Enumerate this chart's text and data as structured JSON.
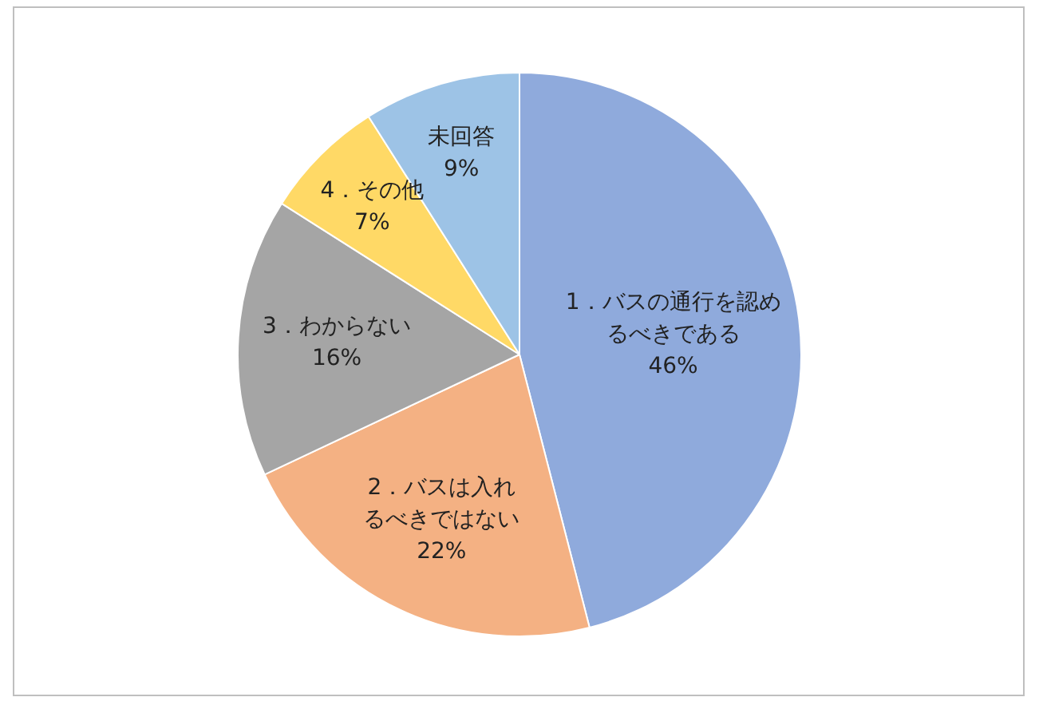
{
  "chart_data": {
    "type": "pie",
    "categories": [
      "1．バスの通行を認めるべきである",
      "2．バスは入れるべきではない",
      "3．わからない",
      "4．その他",
      "未回答"
    ],
    "values": [
      46,
      22,
      16,
      7,
      9
    ],
    "colors": [
      "#8faadc",
      "#f4b183",
      "#a5a5a5",
      "#ffd966",
      "#9dc3e6"
    ],
    "value_labels": [
      "46%",
      "22%",
      "16%",
      "7%",
      "9%"
    ],
    "legend": false
  }
}
